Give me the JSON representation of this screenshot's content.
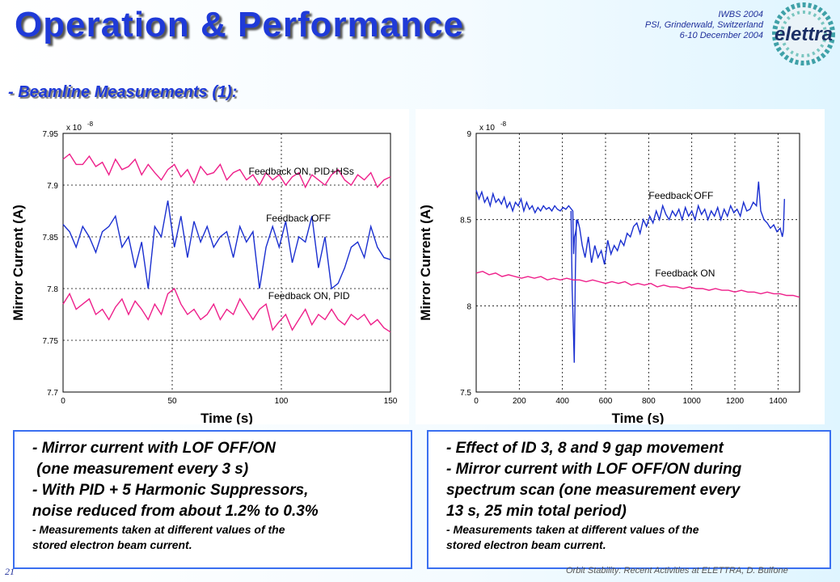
{
  "slide": {
    "title": "Operation & Performance",
    "subtitle": "- Beamline Measurements (1):",
    "conference": {
      "line1": "IWBS 2004",
      "line2": "PSI, Grinderwald, Switzerland",
      "line3": "6-10 December 2004"
    },
    "logo_text": "elettra",
    "slide_number": "21",
    "footer": "Orbit Stability: Recent Activities at ELETTRA, D. Bulfone"
  },
  "textboxes": {
    "left": {
      "lines": [
        "- Mirror current with LOF OFF/ON",
        " (one measurement every 3 s)",
        "- With PID + 5 Harmonic Suppressors,",
        "noise reduced from about 1.2% to 0.3%"
      ],
      "small_lines": [
        "- Measurements taken at different values of the",
        "stored electron beam current."
      ]
    },
    "right": {
      "lines": [
        "- Effect of ID 3, 8 and 9 gap movement",
        "- Mirror current with LOF OFF/ON during",
        "spectrum scan (one measurement every",
        "13 s, 25 min total period)"
      ],
      "small_lines": [
        "- Measurements taken at different values of the",
        "stored electron beam current."
      ]
    }
  },
  "colors": {
    "title": "#1f3ad8",
    "blue_series": "#1a2fd0",
    "magenta_series": "#ee1f8a",
    "box_border": "#3a6ff0"
  },
  "chart_data": [
    {
      "type": "line",
      "xlabel": "Time (s)",
      "ylabel": "Mirror Current (A)",
      "y_exponent_label": "x 10",
      "y_exponent_power": "-8",
      "xlim": [
        0,
        150
      ],
      "ylim": [
        7.7,
        7.95
      ],
      "xticks": [
        0,
        50,
        100,
        150
      ],
      "xtick_labels": [
        "0",
        "50",
        "100",
        "150"
      ],
      "yticks": [
        7.7,
        7.75,
        7.8,
        7.85,
        7.9,
        7.95
      ],
      "ytick_labels": [
        "7.7",
        "7.75",
        "7.8",
        "7.85",
        "7.9",
        "7.95"
      ],
      "grid": true,
      "annotations": [
        {
          "text": "Feedback ON, PID+HSs",
          "x": 85,
          "y": 7.91
        },
        {
          "text": "Feedback OFF",
          "x": 93,
          "y": 7.865
        },
        {
          "text": "Feedback ON, PID",
          "x": 94,
          "y": 7.79
        }
      ],
      "series": [
        {
          "color": "#ee1f8a",
          "x": [
            0,
            3,
            6,
            9,
            12,
            15,
            18,
            21,
            24,
            27,
            30,
            33,
            36,
            39,
            42,
            45,
            48,
            51,
            54,
            57,
            60,
            63,
            66,
            69,
            72,
            75,
            78,
            81,
            84,
            87,
            90,
            93,
            96,
            99,
            102,
            105,
            108,
            111,
            114,
            117,
            120,
            123,
            126,
            129,
            132,
            135,
            138,
            141,
            144,
            147,
            150
          ],
          "y": [
            7.925,
            7.93,
            7.92,
            7.92,
            7.928,
            7.918,
            7.922,
            7.91,
            7.925,
            7.915,
            7.918,
            7.925,
            7.91,
            7.92,
            7.912,
            7.905,
            7.915,
            7.92,
            7.908,
            7.915,
            7.902,
            7.918,
            7.91,
            7.912,
            7.92,
            7.905,
            7.912,
            7.915,
            7.905,
            7.91,
            7.9,
            7.912,
            7.905,
            7.91,
            7.9,
            7.908,
            7.912,
            7.898,
            7.91,
            7.905,
            7.9,
            7.91,
            7.915,
            7.905,
            7.9,
            7.91,
            7.905,
            7.912,
            7.898,
            7.905,
            7.908
          ]
        },
        {
          "color": "#1a2fd0",
          "x": [
            0,
            3,
            6,
            9,
            12,
            15,
            18,
            21,
            24,
            27,
            30,
            33,
            36,
            39,
            42,
            45,
            48,
            51,
            54,
            57,
            60,
            63,
            66,
            69,
            72,
            75,
            78,
            81,
            84,
            87,
            90,
            93,
            96,
            99,
            102,
            105,
            108,
            111,
            114,
            117,
            120,
            123,
            126,
            129,
            132,
            135,
            138,
            141,
            144,
            147,
            150
          ],
          "y": [
            7.862,
            7.855,
            7.84,
            7.86,
            7.85,
            7.835,
            7.855,
            7.86,
            7.87,
            7.84,
            7.85,
            7.82,
            7.845,
            7.8,
            7.86,
            7.85,
            7.885,
            7.84,
            7.87,
            7.83,
            7.865,
            7.845,
            7.86,
            7.84,
            7.85,
            7.855,
            7.83,
            7.86,
            7.845,
            7.855,
            7.8,
            7.84,
            7.86,
            7.84,
            7.865,
            7.825,
            7.85,
            7.845,
            7.87,
            7.82,
            7.85,
            7.8,
            7.805,
            7.82,
            7.84,
            7.845,
            7.83,
            7.86,
            7.84,
            7.83,
            7.828
          ]
        },
        {
          "color": "#ee1f8a",
          "x": [
            0,
            3,
            6,
            9,
            12,
            15,
            18,
            21,
            24,
            27,
            30,
            33,
            36,
            39,
            42,
            45,
            48,
            51,
            54,
            57,
            60,
            63,
            66,
            69,
            72,
            75,
            78,
            81,
            84,
            87,
            90,
            93,
            96,
            99,
            102,
            105,
            108,
            111,
            114,
            117,
            120,
            123,
            126,
            129,
            132,
            135,
            138,
            141,
            144,
            147,
            150
          ],
          "y": [
            7.785,
            7.795,
            7.78,
            7.785,
            7.79,
            7.775,
            7.78,
            7.77,
            7.782,
            7.79,
            7.775,
            7.788,
            7.78,
            7.77,
            7.785,
            7.775,
            7.795,
            7.8,
            7.785,
            7.775,
            7.78,
            7.77,
            7.775,
            7.785,
            7.77,
            7.78,
            7.775,
            7.79,
            7.78,
            7.77,
            7.78,
            7.785,
            7.76,
            7.768,
            7.775,
            7.76,
            7.77,
            7.78,
            7.765,
            7.775,
            7.77,
            7.78,
            7.77,
            7.765,
            7.775,
            7.77,
            7.775,
            7.765,
            7.77,
            7.762,
            7.758
          ]
        }
      ]
    },
    {
      "type": "line",
      "xlabel": "Time (s)",
      "ylabel": "Mirror Current (A)",
      "y_exponent_label": "x 10",
      "y_exponent_power": "-8",
      "xlim": [
        0,
        1500
      ],
      "ylim": [
        7.5,
        9
      ],
      "xticks": [
        0,
        200,
        400,
        600,
        800,
        1000,
        1200,
        1400
      ],
      "xtick_labels": [
        "0",
        "200",
        "400",
        "600",
        "800",
        "1000",
        "1200",
        "1400"
      ],
      "yticks": [
        7.5,
        8,
        8.5,
        9
      ],
      "ytick_labels": [
        "7.5",
        "8",
        "8.5",
        "9"
      ],
      "grid": true,
      "annotations": [
        {
          "text": "Feedback OFF",
          "x": 800,
          "y": 8.62
        },
        {
          "text": "Feedback ON",
          "x": 830,
          "y": 8.17
        }
      ],
      "series": [
        {
          "color": "#1a2fd0",
          "x": [
            0,
            13,
            26,
            39,
            52,
            65,
            78,
            91,
            104,
            117,
            130,
            143,
            156,
            169,
            182,
            195,
            208,
            221,
            234,
            247,
            260,
            273,
            286,
            299,
            312,
            325,
            338,
            351,
            364,
            377,
            390,
            403,
            416,
            429,
            442,
            448,
            452,
            456,
            460,
            464,
            470,
            480,
            492,
            505,
            520,
            535,
            550,
            565,
            580,
            595,
            610,
            625,
            640,
            655,
            670,
            685,
            700,
            715,
            730,
            745,
            760,
            775,
            790,
            805,
            820,
            835,
            850,
            865,
            880,
            895,
            910,
            925,
            940,
            955,
            970,
            985,
            1000,
            1015,
            1030,
            1045,
            1060,
            1075,
            1090,
            1105,
            1120,
            1135,
            1150,
            1165,
            1180,
            1195,
            1210,
            1225,
            1240,
            1255,
            1270,
            1285,
            1300,
            1310,
            1320,
            1335,
            1350,
            1365,
            1380,
            1395,
            1410,
            1420,
            1425,
            1430
          ],
          "y": [
            8.67,
            8.62,
            8.66,
            8.6,
            8.63,
            8.58,
            8.65,
            8.6,
            8.62,
            8.59,
            8.63,
            8.57,
            8.6,
            8.55,
            8.6,
            8.58,
            8.62,
            8.55,
            8.6,
            8.56,
            8.58,
            8.54,
            8.57,
            8.55,
            8.58,
            8.56,
            8.57,
            8.55,
            8.58,
            8.56,
            8.55,
            8.57,
            8.56,
            8.58,
            8.56,
            8.55,
            8.3,
            8.4,
            8.42,
            8.45,
            8.5,
            8.45,
            8.35,
            8.28,
            8.4,
            8.25,
            8.35,
            8.28,
            8.32,
            8.24,
            8.38,
            8.3,
            8.35,
            8.32,
            8.38,
            8.35,
            8.42,
            8.4,
            8.46,
            8.48,
            8.42,
            8.5,
            8.46,
            8.52,
            8.48,
            8.55,
            8.5,
            8.58,
            8.53,
            8.5,
            8.55,
            8.52,
            8.56,
            8.5,
            8.57,
            8.52,
            8.55,
            8.5,
            8.58,
            8.53,
            8.56,
            8.5,
            8.55,
            8.52,
            8.57,
            8.5,
            8.56,
            8.52,
            8.58,
            8.54,
            8.56,
            8.52,
            8.6,
            8.55,
            8.56,
            8.6,
            8.58,
            8.72,
            8.55,
            8.5,
            8.48,
            8.45,
            8.47,
            8.43,
            8.45,
            8.4,
            8.44,
            8.62
          ]
        },
        {
          "color": "#1a2fd0",
          "x": [
            440,
            445,
            450,
            455,
            460,
            465,
            470
          ],
          "y": [
            8.55,
            8.1,
            7.9,
            7.67,
            8.2,
            8.5,
            8.48
          ]
        },
        {
          "color": "#ee1f8a",
          "x": [
            0,
            30,
            60,
            90,
            120,
            150,
            180,
            210,
            240,
            270,
            300,
            330,
            360,
            390,
            420,
            450,
            480,
            510,
            540,
            570,
            600,
            630,
            660,
            690,
            720,
            750,
            780,
            810,
            840,
            870,
            900,
            930,
            960,
            990,
            1020,
            1050,
            1080,
            1110,
            1140,
            1170,
            1200,
            1230,
            1260,
            1290,
            1320,
            1350,
            1380,
            1410,
            1440,
            1470,
            1500
          ],
          "y": [
            8.19,
            8.2,
            8.18,
            8.19,
            8.17,
            8.18,
            8.17,
            8.16,
            8.17,
            8.16,
            8.17,
            8.15,
            8.16,
            8.15,
            8.16,
            8.15,
            8.15,
            8.14,
            8.15,
            8.14,
            8.13,
            8.14,
            8.13,
            8.14,
            8.12,
            8.13,
            8.12,
            8.13,
            8.11,
            8.12,
            8.11,
            8.11,
            8.1,
            8.11,
            8.1,
            8.1,
            8.09,
            8.1,
            8.09,
            8.09,
            8.08,
            8.09,
            8.08,
            8.08,
            8.07,
            8.08,
            8.07,
            8.07,
            8.06,
            8.06,
            8.05
          ]
        }
      ]
    }
  ]
}
